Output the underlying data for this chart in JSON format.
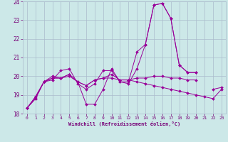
{
  "x_values": [
    0,
    1,
    2,
    3,
    4,
    5,
    6,
    7,
    8,
    9,
    10,
    11,
    12,
    13,
    14,
    15,
    16,
    17,
    18,
    19,
    20,
    21,
    22,
    23
  ],
  "series": [
    [
      18.3,
      18.8,
      19.7,
      19.8,
      20.3,
      20.4,
      19.6,
      19.3,
      19.6,
      20.3,
      20.3,
      19.7,
      19.7,
      21.3,
      21.7,
      23.8,
      23.9,
      23.1,
      20.6,
      20.2,
      20.2,
      null,
      null,
      null
    ],
    [
      18.3,
      18.8,
      19.7,
      20.0,
      19.9,
      20.0,
      19.7,
      18.5,
      18.5,
      19.3,
      20.4,
      19.7,
      19.6,
      20.4,
      21.7,
      23.8,
      23.9,
      23.1,
      20.6,
      20.2,
      20.2,
      null,
      null,
      null
    ],
    [
      18.3,
      18.9,
      19.7,
      19.9,
      19.9,
      20.1,
      19.7,
      19.5,
      19.8,
      19.9,
      20.1,
      19.8,
      19.8,
      19.9,
      19.9,
      20.0,
      20.0,
      19.9,
      19.9,
      19.8,
      19.8,
      null,
      null,
      null
    ],
    [
      18.3,
      18.9,
      19.7,
      19.9,
      19.9,
      20.1,
      19.7,
      19.5,
      19.8,
      19.9,
      19.9,
      19.8,
      19.8,
      19.7,
      19.6,
      19.5,
      19.4,
      19.3,
      19.2,
      19.1,
      19.0,
      18.9,
      18.8,
      19.3
    ],
    [
      null,
      null,
      null,
      null,
      null,
      null,
      null,
      null,
      null,
      null,
      null,
      null,
      null,
      null,
      null,
      null,
      null,
      null,
      null,
      null,
      null,
      null,
      19.3,
      19.4
    ]
  ],
  "line_color": "#990099",
  "marker": "D",
  "marker_size": 2,
  "bg_color": "#cce8e8",
  "grid_color": "#aabbcc",
  "xlabel": "Windchill (Refroidissement éolien,°C)",
  "ylim": [
    18,
    24
  ],
  "xlim": [
    -0.5,
    23.5
  ],
  "yticks": [
    18,
    19,
    20,
    21,
    22,
    23,
    24
  ],
  "xticks": [
    0,
    1,
    2,
    3,
    4,
    5,
    6,
    7,
    8,
    9,
    10,
    11,
    12,
    13,
    14,
    15,
    16,
    17,
    18,
    19,
    20,
    21,
    22,
    23
  ],
  "title_color": "#770077",
  "axis_color": "#770077"
}
